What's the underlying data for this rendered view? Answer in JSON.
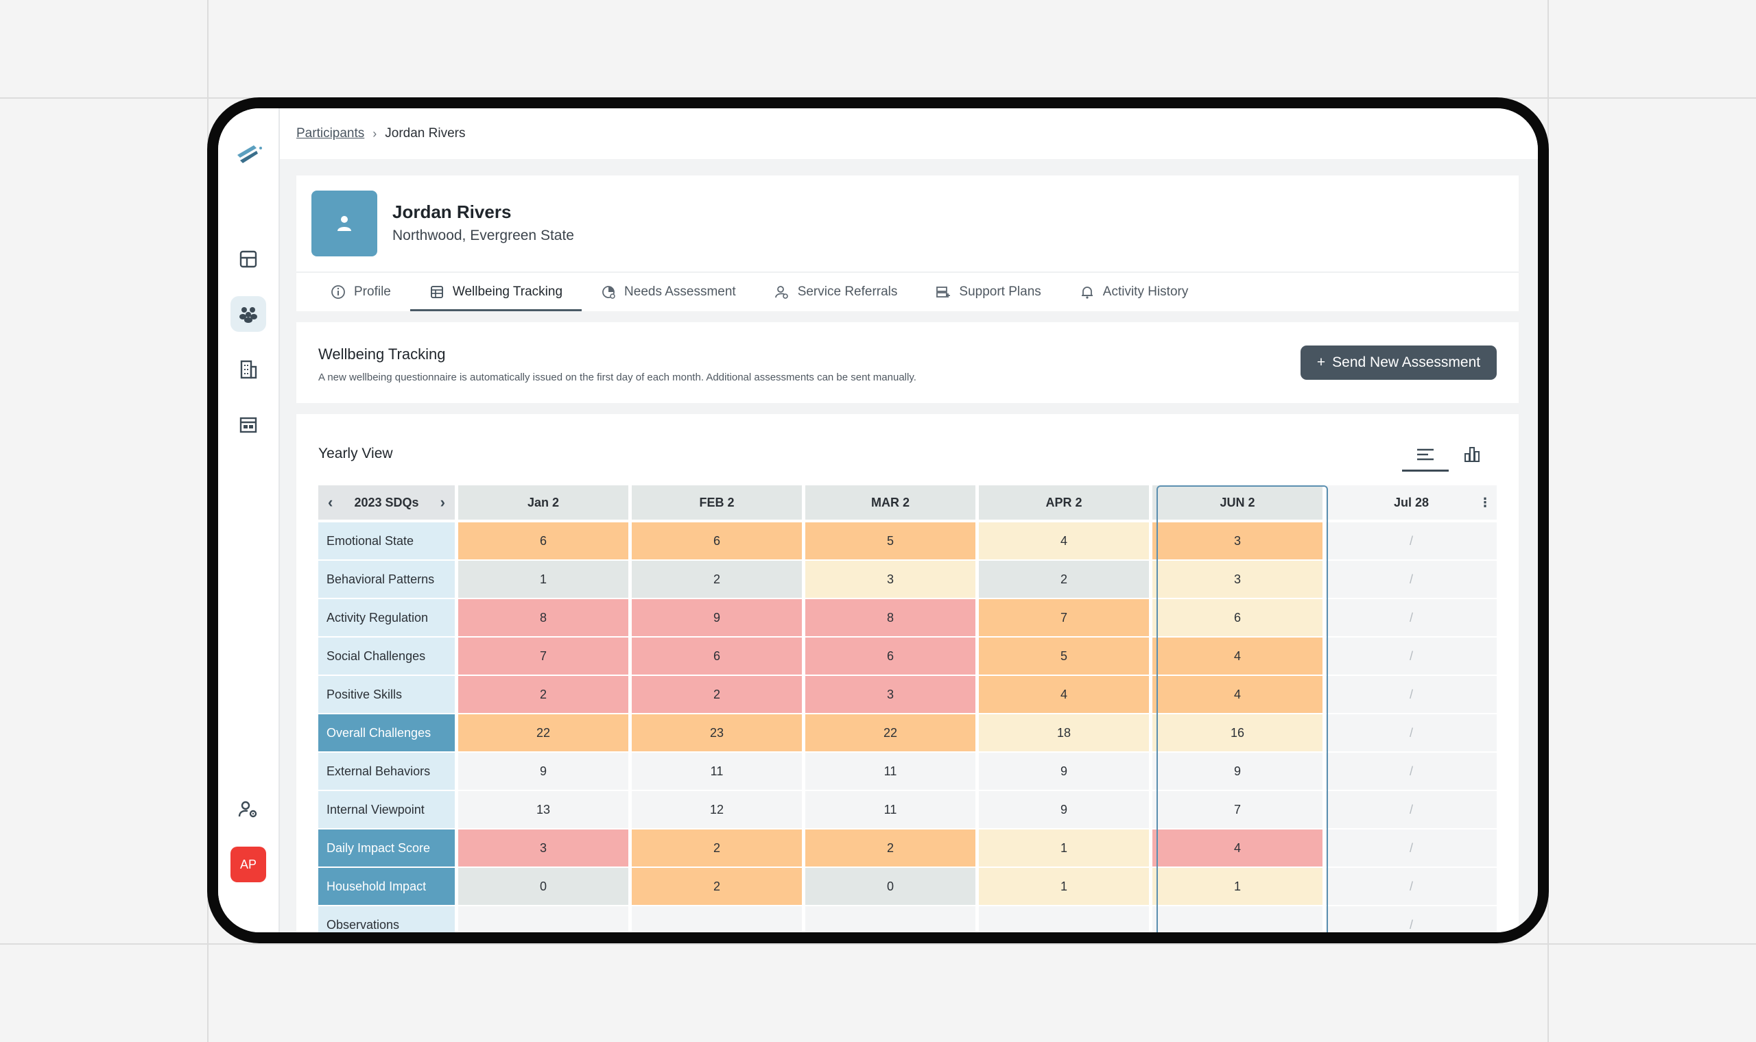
{
  "breadcrumb": {
    "parent": "Participants",
    "current": "Jordan Rivers"
  },
  "profile": {
    "name": "Jordan Rivers",
    "location": "Northwood, Evergreen State"
  },
  "tabs": [
    {
      "label": "Profile",
      "icon": "info-icon"
    },
    {
      "label": "Wellbeing Tracking",
      "icon": "table-icon",
      "active": true
    },
    {
      "label": "Needs Assessment",
      "icon": "gauge-icon"
    },
    {
      "label": "Service Referrals",
      "icon": "user-search-icon"
    },
    {
      "label": "Support Plans",
      "icon": "plan-icon"
    },
    {
      "label": "Activity History",
      "icon": "bell-icon"
    }
  ],
  "info": {
    "title": "Wellbeing Tracking",
    "description": "A new wellbeing questionnaire is automatically issued on the first day of each month. Additional assessments can be sent manually.",
    "send_button": "Send New Assessment"
  },
  "yearly": {
    "title": "Yearly View",
    "period_label": "2023 SDQs",
    "columns": [
      "Jan 2",
      "FEB 2",
      "MAR 2",
      "APR 2",
      "JUN 2",
      "Jul 28"
    ],
    "empty_mark": "/",
    "rows": [
      {
        "label": "Emotional State",
        "values": [
          "6",
          "6",
          "5",
          "4",
          "3"
        ]
      },
      {
        "label": "Behavioral Patterns",
        "values": [
          "1",
          "2",
          "3",
          "2",
          "3"
        ]
      },
      {
        "label": "Activity Regulation",
        "values": [
          "8",
          "9",
          "8",
          "7",
          "6"
        ]
      },
      {
        "label": "Social Challenges",
        "values": [
          "7",
          "6",
          "6",
          "5",
          "4"
        ]
      },
      {
        "label": "Positive Skills",
        "values": [
          "2",
          "2",
          "3",
          "4",
          "4"
        ]
      },
      {
        "label": "Overall Challenges",
        "values": [
          "22",
          "23",
          "22",
          "18",
          "16"
        ]
      },
      {
        "label": "External Behaviors",
        "values": [
          "9",
          "11",
          "11",
          "9",
          "9"
        ]
      },
      {
        "label": "Internal Viewpoint",
        "values": [
          "13",
          "12",
          "11",
          "9",
          "7"
        ]
      },
      {
        "label": "Daily Impact Score",
        "values": [
          "3",
          "2",
          "2",
          "1",
          "4"
        ]
      },
      {
        "label": "Household Impact",
        "values": [
          "0",
          "2",
          "0",
          "1",
          "1"
        ]
      },
      {
        "label": "Observations",
        "values": [
          "",
          "",
          "",
          "",
          ""
        ]
      }
    ]
  },
  "user": {
    "initials": "AP"
  },
  "colors": {
    "accent": "#5b9fbf",
    "red": "#f5adac",
    "orange": "#fdc88f",
    "yellow": "#fbefd2",
    "grey": "#e2e7e6"
  }
}
